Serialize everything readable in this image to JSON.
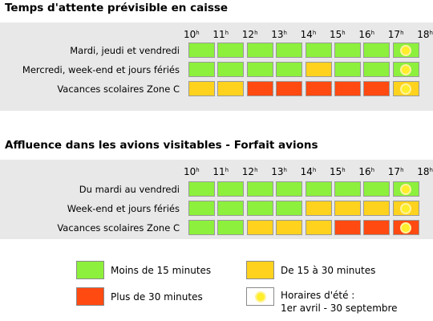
{
  "colors": {
    "green": "#8cf03c",
    "yellow": "#ffd21e",
    "red": "#ff4a12",
    "sun": "#ffee2a",
    "panel": "#e8e8e8"
  },
  "hour_suffix": "h",
  "hours": [
    "10",
    "11",
    "12",
    "13",
    "14",
    "15",
    "16",
    "17",
    "18"
  ],
  "section1": {
    "title": "Temps d'attente prévisible en caisse",
    "rows": [
      {
        "label": "Mardi, jeudi et vendredi",
        "cells": [
          "green",
          "green",
          "green",
          "green",
          "green",
          "green",
          "green",
          "sun-green"
        ]
      },
      {
        "label": "Mercredi, week-end et jours fériés",
        "cells": [
          "green",
          "green",
          "green",
          "green",
          "yellow",
          "green",
          "green",
          "sun-green"
        ]
      },
      {
        "label": "Vacances scolaires Zone C",
        "cells": [
          "yellow",
          "yellow",
          "red",
          "red",
          "red",
          "red",
          "red",
          "sun-yellow"
        ]
      }
    ]
  },
  "section2": {
    "title": "Affluence dans les avions visitables - Forfait avions",
    "rows": [
      {
        "label": "Du mardi au vendredi",
        "cells": [
          "green",
          "green",
          "green",
          "green",
          "green",
          "green",
          "green",
          "sun-green"
        ]
      },
      {
        "label": "Week-end et jours fériés",
        "cells": [
          "green",
          "green",
          "green",
          "green",
          "yellow",
          "yellow",
          "yellow",
          "sun-yellow"
        ]
      },
      {
        "label": "Vacances scolaires Zone C",
        "cells": [
          "green",
          "green",
          "yellow",
          "yellow",
          "yellow",
          "red",
          "red",
          "sun-red"
        ]
      }
    ]
  },
  "legend": {
    "green": "Moins de 15 minutes",
    "yellow": "De 15 à 30 minutes",
    "red": "Plus de 30 minutes",
    "summer_line1": "Horaires d'été :",
    "summer_line2": "1er avril - 30 septembre"
  }
}
